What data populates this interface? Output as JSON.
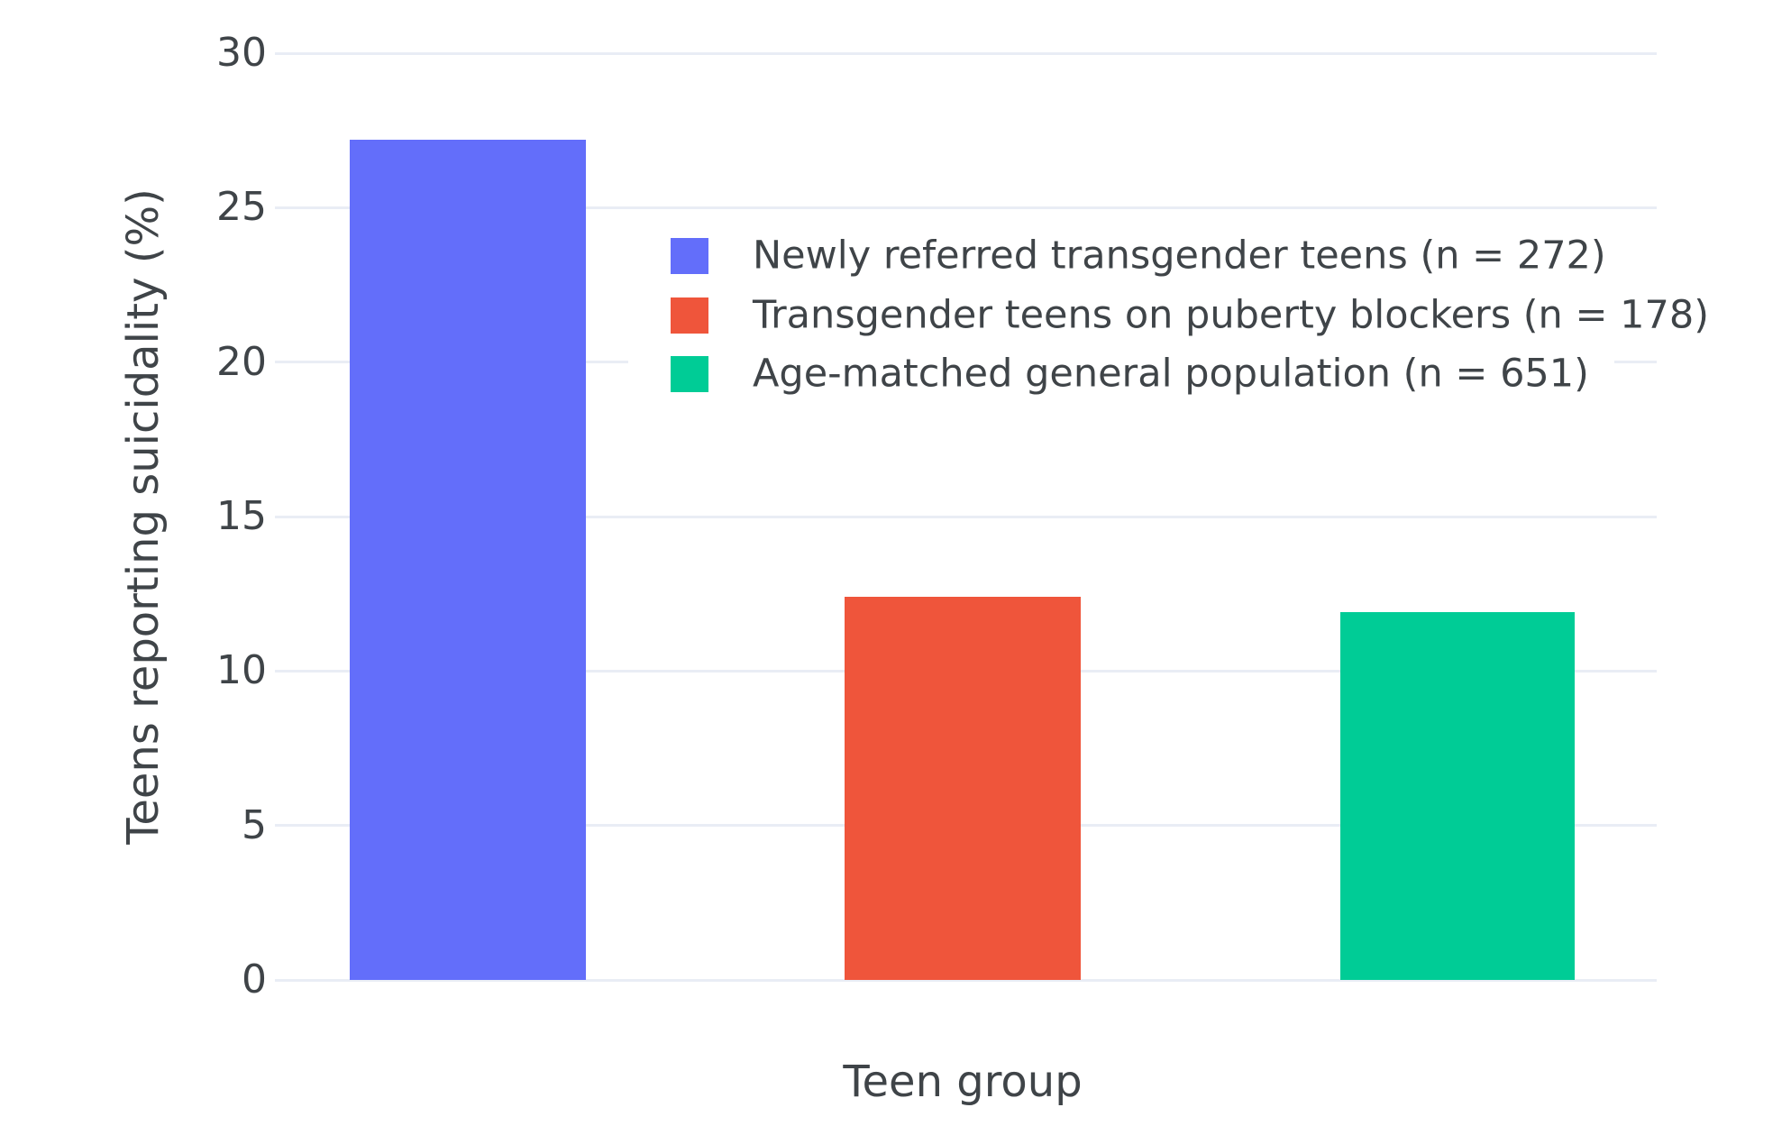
{
  "chart_data": {
    "type": "bar",
    "title": "",
    "xlabel": "Teen group",
    "ylabel": "Teens reporting suicidality (%)",
    "ylim": [
      0,
      30
    ],
    "yticks": [
      0,
      5,
      10,
      15,
      20,
      25,
      30
    ],
    "grid": true,
    "legend_position": "inside-top-right",
    "background_color": "#ffffff",
    "gridline_color": "#E9EDF5",
    "text_color": "#3f4448",
    "categories": [
      "Newly referred transgender teens (n = 272)",
      "Transgender teens on puberty blockers (n = 178)",
      "Age-matched general population (n = 651)"
    ],
    "series": [
      {
        "name": "Newly referred transgender teens (n = 272)",
        "value": 27.2,
        "color": "#636EFA"
      },
      {
        "name": "Transgender teens on puberty blockers (n = 178)",
        "value": 12.4,
        "color": "#EF553B"
      },
      {
        "name": "Age-matched general population (n = 651)",
        "value": 11.9,
        "color": "#00CC96"
      }
    ]
  }
}
